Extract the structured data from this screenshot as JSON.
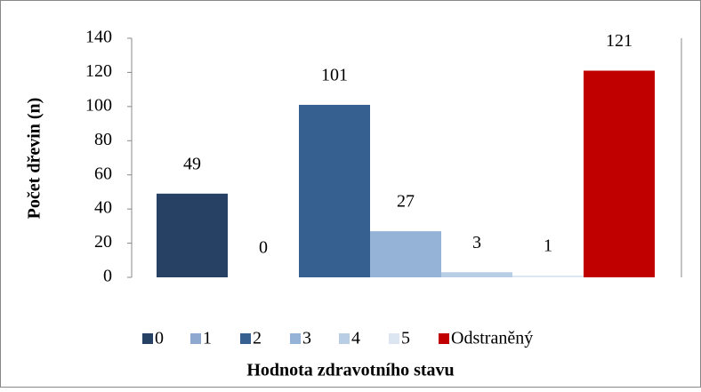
{
  "chart_data": {
    "type": "bar",
    "x_label": "Hodnota zdravotního stavu",
    "y_label": "Počet dřevin (n)",
    "series": [
      {
        "name": "0",
        "color": "#264164",
        "values": [
          49
        ]
      },
      {
        "name": "1",
        "color": "#8fa8d0",
        "values": [
          0
        ]
      },
      {
        "name": "2",
        "color": "#36608f",
        "values": [
          101
        ]
      },
      {
        "name": "3",
        "color": "#95b3d7",
        "values": [
          27
        ]
      },
      {
        "name": "4",
        "color": "#b9cde5",
        "values": [
          3
        ]
      },
      {
        "name": "5",
        "color": "#dce6f2",
        "values": [
          1
        ]
      },
      {
        "name": "Odstraněný",
        "color": "#c00000",
        "values": [
          121
        ]
      }
    ],
    "ylim": [
      0,
      140
    ],
    "yticks": [
      0,
      20,
      40,
      60,
      80,
      100,
      120,
      140
    ],
    "grid": false,
    "legend": "bottom"
  }
}
